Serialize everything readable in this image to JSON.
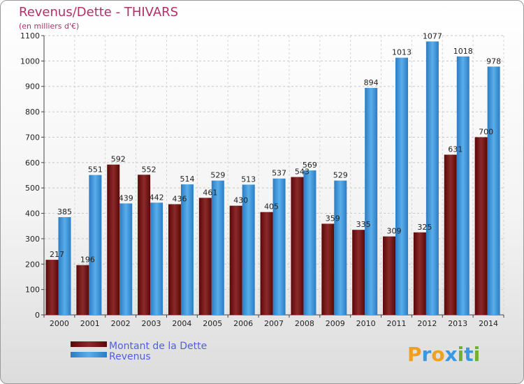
{
  "chart_data": {
    "type": "bar",
    "title": "Revenus/Dette - THIVARS",
    "subtitle": "(en milliers d'€)",
    "categories": [
      "2000",
      "2001",
      "2002",
      "2003",
      "2004",
      "2005",
      "2006",
      "2007",
      "2008",
      "2009",
      "2010",
      "2011",
      "2012",
      "2013",
      "2014"
    ],
    "series": [
      {
        "name": "Montant de la Dette",
        "color": "#7a1a1a",
        "values": [
          217,
          196,
          592,
          552,
          436,
          461,
          430,
          405,
          543,
          359,
          335,
          309,
          325,
          631,
          700
        ]
      },
      {
        "name": "Revenus",
        "color": "#3a98e0",
        "values": [
          385,
          551,
          439,
          442,
          514,
          529,
          513,
          537,
          569,
          529,
          894,
          1013,
          1077,
          1018,
          978
        ]
      }
    ],
    "ylim": [
      0,
      1100
    ],
    "yticks": [
      0,
      100,
      200,
      300,
      400,
      500,
      600,
      700,
      800,
      900,
      1000,
      1100
    ],
    "grid": true,
    "legend_position": "bottom-left"
  },
  "logo": {
    "letters": [
      "P",
      "r",
      "o",
      "x",
      "i",
      "t",
      "i"
    ],
    "colors": [
      "#f0a020",
      "#3a98e0",
      "#f0a020",
      "#3a98e0",
      "#70b030",
      "#3a98e0",
      "#70b030"
    ]
  }
}
